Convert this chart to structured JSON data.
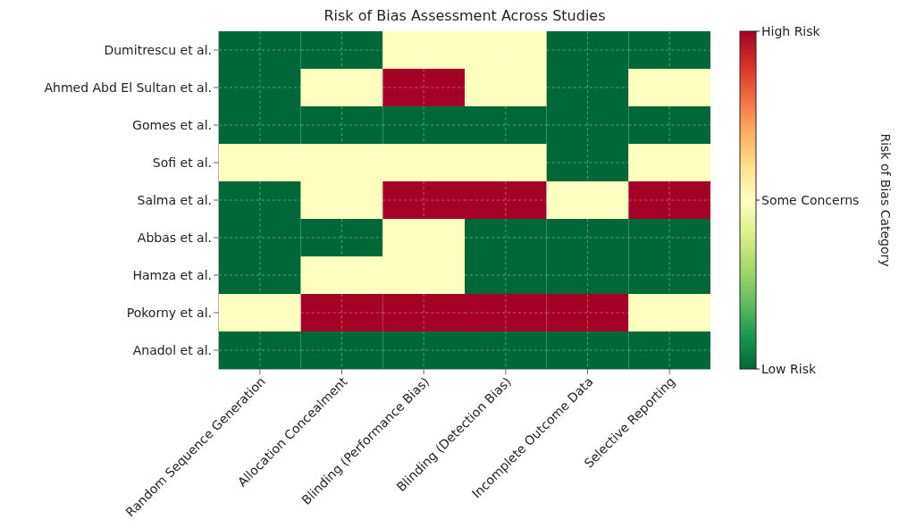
{
  "chart_data": {
    "type": "heatmap",
    "title": "Risk of Bias Assessment Across Studies",
    "categories": [
      "Random Sequence Generation",
      "Allocation Concealment",
      "Blinding (Performance Bias)",
      "Blinding (Detection Bias)",
      "Incomplete Outcome Data",
      "Selective Reporting"
    ],
    "y_categories": [
      "Dumitrescu et al.",
      "Ahmed Abd El Sultan et al.",
      "Gomes et al.",
      "Sofi et al.",
      "Salma et al.",
      "Abbas et al.",
      "Hamza et al.",
      "Pokorny et al.",
      "Anadol et al."
    ],
    "cells": [
      [
        0,
        0,
        1,
        1,
        0,
        0
      ],
      [
        0,
        1,
        2,
        1,
        0,
        1
      ],
      [
        0,
        0,
        0,
        0,
        0,
        0
      ],
      [
        1,
        1,
        1,
        1,
        0,
        1
      ],
      [
        0,
        1,
        2,
        2,
        1,
        2
      ],
      [
        0,
        0,
        1,
        0,
        0,
        0
      ],
      [
        0,
        1,
        1,
        0,
        0,
        0
      ],
      [
        1,
        2,
        2,
        2,
        2,
        1
      ],
      [
        0,
        0,
        0,
        0,
        0,
        0
      ]
    ],
    "clim": [
      0,
      2
    ],
    "cticks": [
      {
        "value": 0,
        "label": "Low Risk"
      },
      {
        "value": 1,
        "label": "Some Concerns"
      },
      {
        "value": 2,
        "label": "High Risk"
      }
    ],
    "clabel": "Risk of Bias Category",
    "grid": true
  }
}
